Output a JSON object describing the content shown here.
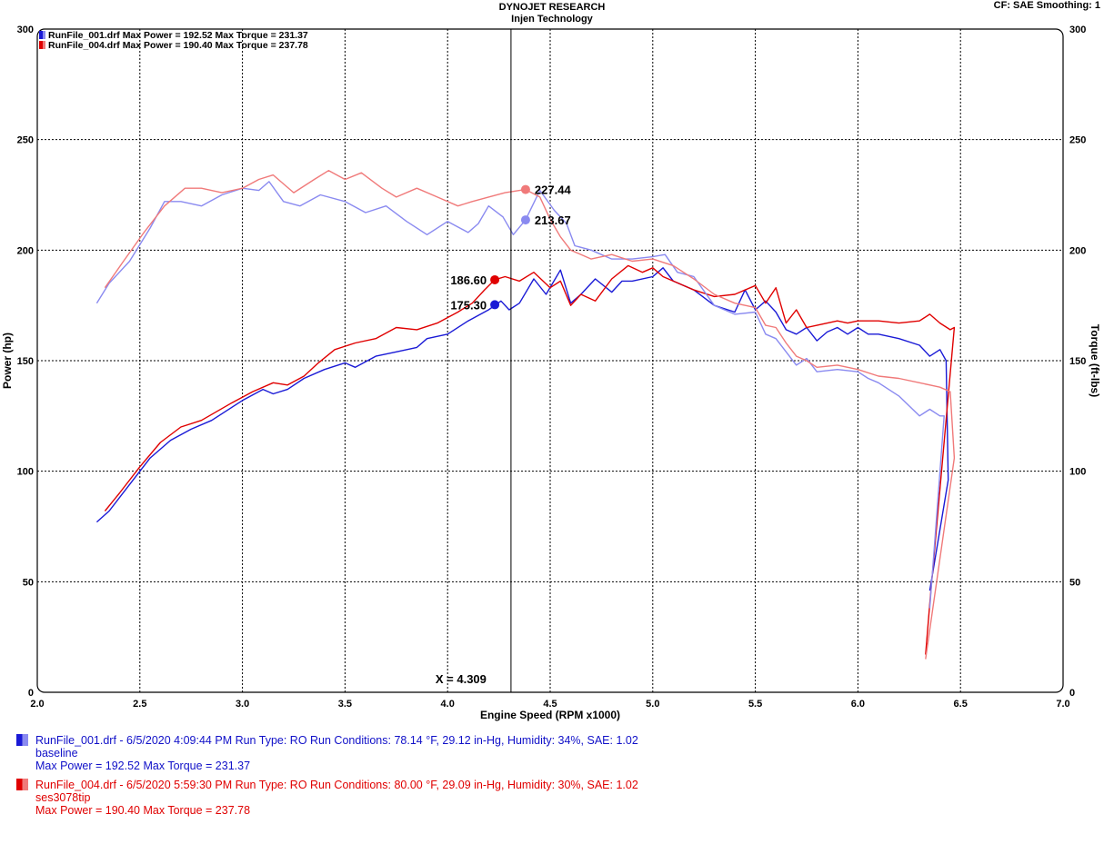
{
  "header": {
    "title": "DYNOJET RESEARCH",
    "subtitle": "Injen Technology",
    "cf": "CF: SAE  Smoothing: 1"
  },
  "colors": {
    "blue": "#1a1ad6",
    "blue_light": "#8a8af0",
    "red": "#e00000",
    "red_light": "#f07a7a"
  },
  "top_legend": [
    {
      "text": "RunFile_001.drf Max Power = 192.52    Max Torque = 231.37",
      "color": "#1a1ad6"
    },
    {
      "text": "RunFile_004.drf Max Power = 190.40    Max Torque = 237.78",
      "color": "#e00000"
    }
  ],
  "cursor": {
    "x_label": "X = 4.309",
    "x": 4.309,
    "markers": [
      {
        "label": "227.44",
        "value": 227.44,
        "x": 4.38,
        "color": "#f07a7a"
      },
      {
        "label": "213.67",
        "value": 213.67,
        "x": 4.38,
        "color": "#8a8af0"
      },
      {
        "label": "186.60",
        "value": 186.6,
        "x": 4.23,
        "color": "#e00000"
      },
      {
        "label": "175.30",
        "value": 175.3,
        "x": 4.23,
        "color": "#1a1ad6"
      }
    ]
  },
  "bottom_legend": [
    {
      "line1": "RunFile_001.drf - 6/5/2020 4:09:44 PM  Run Type: RO  Run Conditions: 78.14 °F, 29.12 in-Hg,  Humidity:  34%, SAE: 1.02",
      "line2": "baseline",
      "line3": "Max Power = 192.52  Max Torque = 231.37"
    },
    {
      "line1": "RunFile_004.drf - 6/5/2020 5:59:30 PM  Run Type: RO  Run Conditions: 80.00 °F, 29.09 in-Hg,  Humidity:  30%, SAE: 1.02",
      "line2": "ses3078tip",
      "line3": "Max Power = 190.40  Max Torque = 237.78"
    }
  ],
  "chart_data": {
    "type": "line",
    "xlabel": "Engine Speed (RPM x1000)",
    "ylabel": "Power (hp)",
    "y2label": "Torque (ft-lbs)",
    "xlim": [
      2.0,
      7.0
    ],
    "ylim": [
      0,
      300
    ],
    "y2lim": [
      0,
      300
    ],
    "x_ticks": [
      "2.0",
      "2.5",
      "3.0",
      "3.5",
      "4.0",
      "4.5",
      "5.0",
      "5.5",
      "6.0",
      "6.5",
      "7.0"
    ],
    "y_ticks": [
      "0",
      "50",
      "100",
      "150",
      "200",
      "250",
      "300"
    ],
    "grid": true,
    "series": [
      {
        "name": "RunFile_001.drf",
        "color": "#1a1ad6",
        "x": [
          2.29,
          2.35,
          2.45,
          2.55,
          2.65,
          2.75,
          2.85,
          3.0,
          3.1,
          3.15,
          3.22,
          3.3,
          3.4,
          3.5,
          3.55,
          3.65,
          3.75,
          3.85,
          3.9,
          4.0,
          4.1,
          4.2,
          4.23,
          4.26,
          4.3,
          4.35,
          4.42,
          4.48,
          4.55,
          4.6,
          4.65,
          4.72,
          4.8,
          4.85,
          4.9,
          5.0,
          5.05,
          5.1,
          5.2,
          5.3,
          5.4,
          5.45,
          5.5,
          5.55,
          5.6,
          5.65,
          5.7,
          5.75,
          5.8,
          5.85,
          5.9,
          5.95,
          6.0,
          6.05,
          6.1,
          6.2,
          6.3,
          6.35,
          6.4,
          6.43,
          6.44,
          6.35
        ],
        "values": [
          77,
          82,
          94,
          106,
          114,
          119,
          123,
          132,
          137,
          135,
          137,
          142,
          146,
          149,
          147,
          152,
          154,
          156,
          160,
          162,
          168,
          173,
          175,
          177,
          173,
          176,
          187,
          180,
          191,
          176,
          180,
          187,
          181,
          186,
          186,
          188,
          192,
          186,
          182,
          175,
          172,
          182,
          173,
          177,
          172,
          164,
          162,
          165,
          159,
          163,
          165,
          162,
          165,
          162,
          162,
          160,
          157,
          152,
          155,
          150,
          96,
          46
        ]
      },
      {
        "name": "RunFile_004.drf",
        "color": "#e00000",
        "x": [
          2.33,
          2.4,
          2.5,
          2.6,
          2.7,
          2.8,
          2.95,
          3.05,
          3.15,
          3.22,
          3.3,
          3.37,
          3.45,
          3.55,
          3.65,
          3.75,
          3.85,
          3.95,
          4.05,
          4.12,
          4.18,
          4.23,
          4.28,
          4.35,
          4.42,
          4.5,
          4.55,
          4.6,
          4.65,
          4.72,
          4.8,
          4.88,
          4.95,
          5.0,
          5.05,
          5.1,
          5.2,
          5.3,
          5.4,
          5.5,
          5.55,
          5.6,
          5.65,
          5.7,
          5.75,
          5.8,
          5.9,
          5.95,
          6.0,
          6.1,
          6.2,
          6.3,
          6.35,
          6.4,
          6.45,
          6.47,
          6.35,
          6.33
        ],
        "values": [
          82,
          90,
          102,
          113,
          120,
          123,
          131,
          136,
          140,
          139,
          143,
          149,
          155,
          158,
          160,
          165,
          164,
          167,
          172,
          176,
          182,
          186.6,
          188,
          186,
          190,
          183,
          186,
          175,
          180,
          177,
          187,
          193,
          190,
          192,
          188,
          186,
          182,
          179,
          180,
          184,
          176,
          183,
          167,
          173,
          165,
          166,
          168,
          167,
          168,
          168,
          167,
          168,
          171,
          167,
          164,
          165,
          40,
          17
        ]
      },
      {
        "name": "RunFile_001.drf Torque",
        "color": "#8a8af0",
        "x": [
          2.29,
          2.35,
          2.45,
          2.55,
          2.62,
          2.7,
          2.8,
          2.9,
          3.0,
          3.08,
          3.13,
          3.2,
          3.28,
          3.38,
          3.5,
          3.6,
          3.7,
          3.8,
          3.9,
          4.0,
          4.1,
          4.15,
          4.2,
          4.27,
          4.32,
          4.38,
          4.45,
          4.52,
          4.58,
          4.62,
          4.7,
          4.8,
          4.9,
          5.0,
          5.06,
          5.12,
          5.2,
          5.3,
          5.4,
          5.5,
          5.55,
          5.6,
          5.7,
          5.75,
          5.8,
          5.9,
          6.0,
          6.05,
          6.1,
          6.2,
          6.3,
          6.35,
          6.4,
          6.42,
          6.35
        ],
        "values": [
          176,
          185,
          195,
          210,
          222,
          222,
          220,
          225,
          228,
          227,
          231,
          222,
          220,
          225,
          222,
          217,
          220,
          213,
          207,
          213,
          208,
          212,
          220,
          215,
          207,
          213.67,
          227,
          218,
          212,
          202,
          200,
          196,
          196,
          197,
          198,
          190,
          188,
          175,
          171,
          172,
          162,
          160,
          148,
          151,
          145,
          146,
          145,
          142,
          140,
          134,
          125,
          128,
          125,
          125,
          38
        ]
      },
      {
        "name": "RunFile_004.drf Torque",
        "color": "#f07a7a",
        "x": [
          2.33,
          2.42,
          2.52,
          2.62,
          2.72,
          2.8,
          2.9,
          3.0,
          3.08,
          3.15,
          3.25,
          3.35,
          3.42,
          3.5,
          3.58,
          3.68,
          3.75,
          3.85,
          3.95,
          4.05,
          4.12,
          4.2,
          4.28,
          4.38,
          4.45,
          4.5,
          4.55,
          4.6,
          4.7,
          4.8,
          4.9,
          5.0,
          5.1,
          5.2,
          5.3,
          5.4,
          5.5,
          5.55,
          5.6,
          5.65,
          5.7,
          5.75,
          5.8,
          5.9,
          6.0,
          6.1,
          6.2,
          6.3,
          6.4,
          6.45,
          6.47,
          6.33
        ],
        "values": [
          183,
          195,
          208,
          220,
          228,
          228,
          226,
          228,
          232,
          234,
          226,
          232,
          236,
          232,
          235,
          228,
          224,
          228,
          224,
          220,
          222,
          224,
          226,
          227.44,
          224,
          214,
          206,
          200,
          196,
          198,
          195,
          196,
          193,
          187,
          180,
          176,
          174,
          166,
          165,
          158,
          152,
          150,
          147,
          148,
          146,
          143,
          142,
          140,
          138,
          136,
          106,
          15
        ]
      }
    ]
  }
}
